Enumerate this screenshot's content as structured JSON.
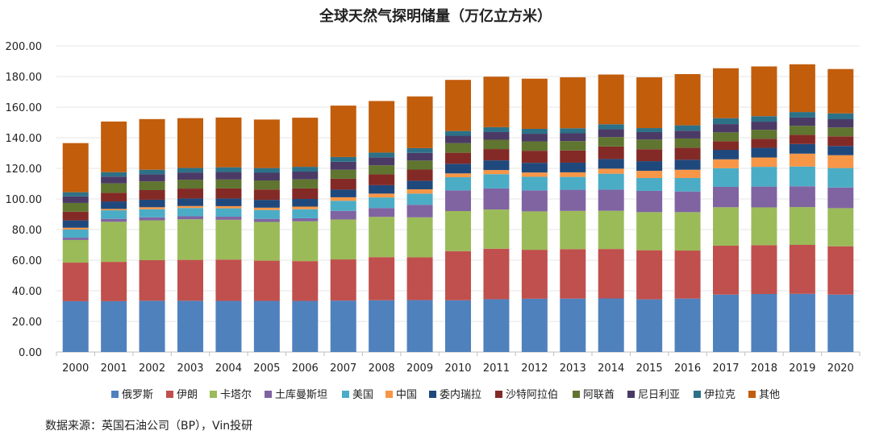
{
  "chart_data": {
    "type": "bar",
    "stacked": true,
    "title": "全球天然气探明储量（万亿立方米）",
    "xlabel": "",
    "ylabel": "",
    "ylim": [
      0,
      200
    ],
    "yticks": [
      "0.00",
      "20.00",
      "40.00",
      "60.00",
      "80.00",
      "100.00",
      "120.00",
      "140.00",
      "160.00",
      "180.00",
      "200.00"
    ],
    "grid": true,
    "legend_position": "bottom",
    "categories": [
      "2000",
      "2001",
      "2002",
      "2003",
      "2004",
      "2005",
      "2006",
      "2007",
      "2008",
      "2009",
      "2010",
      "2011",
      "2012",
      "2013",
      "2014",
      "2015",
      "2016",
      "2017",
      "2018",
      "2019",
      "2020"
    ],
    "series": [
      {
        "name": "俄罗斯",
        "color": "#4f81bd",
        "values": [
          33.2,
          33.2,
          33.5,
          33.5,
          33.4,
          33.4,
          33.4,
          33.6,
          33.8,
          33.9,
          33.8,
          34.5,
          34.8,
          34.9,
          35.0,
          34.4,
          34.9,
          37.5,
          37.9,
          38.0,
          37.5
        ]
      },
      {
        "name": "伊朗",
        "color": "#c0504d",
        "values": [
          25.2,
          25.7,
          26.5,
          26.7,
          27.0,
          26.3,
          26.0,
          26.9,
          28.2,
          28.0,
          32.1,
          33.0,
          32.0,
          32.3,
          32.3,
          32.1,
          31.4,
          32.0,
          31.9,
          32.0,
          31.6
        ]
      },
      {
        "name": "卡塔尔",
        "color": "#9bbb59",
        "values": [
          14.8,
          26.2,
          26.0,
          26.5,
          26.0,
          25.3,
          26.0,
          26.1,
          26.3,
          26.1,
          26.2,
          25.6,
          25.1,
          25.0,
          25.0,
          24.9,
          25.1,
          25.1,
          24.7,
          24.7,
          24.9
        ]
      },
      {
        "name": "土库曼斯坦",
        "color": "#8064a2",
        "values": [
          1.5,
          1.9,
          2.0,
          2.0,
          2.0,
          2.0,
          2.0,
          5.6,
          5.8,
          8.2,
          13.5,
          13.8,
          13.7,
          13.8,
          13.8,
          13.9,
          13.5,
          13.3,
          13.6,
          13.6,
          13.5
        ]
      },
      {
        "name": "美国",
        "color": "#4bacc6",
        "values": [
          5.3,
          5.6,
          5.3,
          5.4,
          5.5,
          5.8,
          5.9,
          6.6,
          6.9,
          7.3,
          8.6,
          9.3,
          8.9,
          8.4,
          10.4,
          8.4,
          8.8,
          12.2,
          12.9,
          12.9,
          12.7
        ]
      },
      {
        "name": "中国",
        "color": "#f79646",
        "values": [
          1.2,
          0.9,
          1.3,
          1.3,
          1.4,
          1.5,
          1.7,
          2.3,
          2.5,
          2.8,
          2.5,
          2.7,
          2.8,
          3.0,
          3.3,
          4.7,
          5.4,
          5.8,
          6.1,
          8.4,
          8.4
        ]
      },
      {
        "name": "委内瑞拉",
        "color": "#1f497d",
        "values": [
          4.8,
          4.9,
          4.9,
          4.9,
          5.0,
          5.1,
          5.0,
          5.0,
          5.5,
          5.6,
          6.3,
          6.3,
          6.3,
          6.3,
          6.3,
          6.3,
          6.5,
          6.2,
          6.3,
          6.3,
          6.0
        ]
      },
      {
        "name": "沙特阿拉伯",
        "color": "#832a26",
        "values": [
          5.7,
          5.6,
          6.3,
          6.5,
          6.6,
          6.8,
          6.9,
          7.1,
          7.1,
          7.3,
          7.2,
          7.4,
          7.9,
          8.0,
          8.2,
          7.8,
          7.9,
          5.6,
          5.9,
          6.0,
          6.3
        ]
      },
      {
        "name": "阿联酋",
        "color": "#5f7530",
        "values": [
          5.7,
          6.2,
          5.7,
          5.8,
          5.8,
          5.9,
          5.9,
          5.9,
          5.9,
          5.9,
          6.3,
          6.1,
          6.1,
          6.1,
          6.1,
          6.3,
          6.0,
          5.8,
          5.9,
          5.9,
          5.8
        ]
      },
      {
        "name": "尼日利亚",
        "color": "#4b3a66",
        "values": [
          4.3,
          4.4,
          4.6,
          4.7,
          4.9,
          5.0,
          5.1,
          5.2,
          5.2,
          5.0,
          4.8,
          5.0,
          5.0,
          5.1,
          5.1,
          4.9,
          5.1,
          5.4,
          5.3,
          5.4,
          5.4
        ]
      },
      {
        "name": "伊拉克",
        "color": "#2c7187",
        "values": [
          2.7,
          2.9,
          3.0,
          3.0,
          3.1,
          3.1,
          3.1,
          3.1,
          3.1,
          3.1,
          3.1,
          3.2,
          3.2,
          3.3,
          3.3,
          2.6,
          3.5,
          3.9,
          3.6,
          3.6,
          3.8
        ]
      },
      {
        "name": "其他",
        "color": "#c25d0c",
        "values": [
          32.1,
          33.1,
          33.1,
          32.5,
          32.5,
          31.7,
          32.1,
          33.6,
          33.7,
          33.8,
          33.4,
          33.0,
          32.8,
          33.3,
          32.5,
          33.2,
          33.5,
          32.6,
          32.5,
          31.2,
          29.0
        ]
      }
    ]
  },
  "source": "数据来源：英国石油公司（BP），Vin投研"
}
